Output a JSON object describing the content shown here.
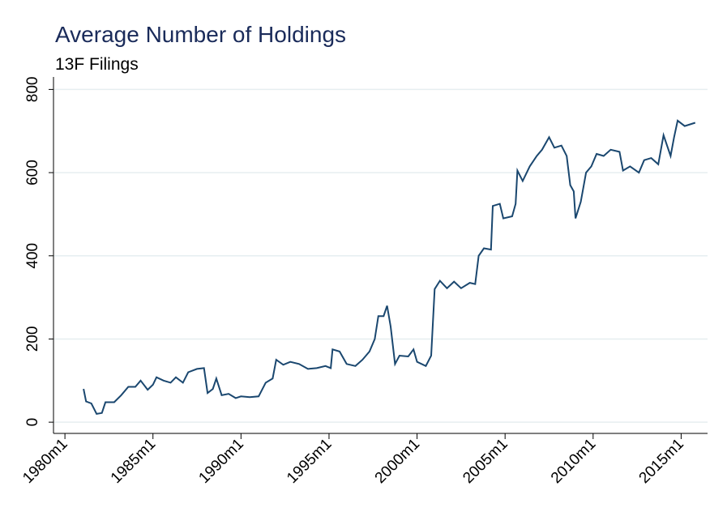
{
  "chart_data": {
    "type": "line",
    "title": "Average Number of Holdings",
    "subtitle": "13F Filings",
    "x": [
      1981.06,
      1981.2,
      1981.5,
      1981.8,
      1982.1,
      1982.3,
      1982.8,
      1983.2,
      1983.6,
      1984.0,
      1984.3,
      1984.7,
      1985.0,
      1985.2,
      1985.6,
      1986.0,
      1986.3,
      1986.7,
      1987.0,
      1987.5,
      1987.9,
      1988.1,
      1988.4,
      1988.6,
      1988.9,
      1989.3,
      1989.7,
      1990.0,
      1990.5,
      1991.0,
      1991.4,
      1991.8,
      1992.0,
      1992.4,
      1992.8,
      1993.3,
      1993.8,
      1994.3,
      1994.8,
      1995.1,
      1995.2,
      1995.6,
      1996.0,
      1996.5,
      1996.9,
      1997.3,
      1997.6,
      1997.8,
      1998.1,
      1998.3,
      1998.5,
      1998.75,
      1999.0,
      1999.5,
      1999.8,
      2000.0,
      2000.5,
      2000.8,
      2001.0,
      2001.3,
      2001.7,
      2002.1,
      2002.5,
      2003.0,
      2003.3,
      2003.5,
      2003.8,
      2004.2,
      2004.3,
      2004.7,
      2004.9,
      2005.4,
      2005.6,
      2005.7,
      2006.0,
      2006.4,
      2006.8,
      2007.1,
      2007.5,
      2007.8,
      2008.2,
      2008.5,
      2008.7,
      2008.9,
      2009.0,
      2009.3,
      2009.6,
      2009.9,
      2010.2,
      2010.6,
      2011.0,
      2011.5,
      2011.7,
      2012.1,
      2012.6,
      2012.9,
      2013.3,
      2013.7,
      2014.0,
      2014.4,
      2014.6,
      2014.8,
      2015.2,
      2015.8
    ],
    "series": [
      {
        "color": "#1a476f",
        "values": [
          80,
          50,
          45,
          20,
          22,
          48,
          48,
          65,
          85,
          85,
          100,
          78,
          90,
          108,
          100,
          95,
          108,
          95,
          120,
          128,
          130,
          70,
          80,
          105,
          65,
          68,
          58,
          62,
          60,
          62,
          95,
          105,
          150,
          138,
          145,
          140,
          128,
          130,
          135,
          130,
          175,
          170,
          140,
          135,
          150,
          170,
          200,
          255,
          255,
          280,
          230,
          140,
          160,
          158,
          175,
          145,
          135,
          160,
          320,
          340,
          322,
          338,
          322,
          335,
          332,
          400,
          418,
          415,
          520,
          525,
          490,
          495,
          525,
          605,
          580,
          615,
          640,
          655,
          685,
          660,
          665,
          640,
          570,
          555,
          490,
          530,
          600,
          615,
          645,
          640,
          655,
          650,
          605,
          615,
          600,
          630,
          635,
          620,
          690,
          640,
          685,
          725,
          712,
          720
        ]
      }
    ],
    "xlim": [
      1979.35,
      2016.5
    ],
    "xticks": [
      {
        "value": 1980,
        "label": "1980m1"
      },
      {
        "value": 1985,
        "label": "1985m1"
      },
      {
        "value": 1990,
        "label": "1990m1"
      },
      {
        "value": 1995,
        "label": "1995m1"
      },
      {
        "value": 2000,
        "label": "2000m1"
      },
      {
        "value": 2005,
        "label": "2005m1"
      },
      {
        "value": 2010,
        "label": "2010m1"
      },
      {
        "value": 2015,
        "label": "2015m1"
      }
    ],
    "ylim": [
      -27,
      830
    ],
    "yticks": [
      0,
      200,
      400,
      600,
      800
    ],
    "grid": true
  }
}
